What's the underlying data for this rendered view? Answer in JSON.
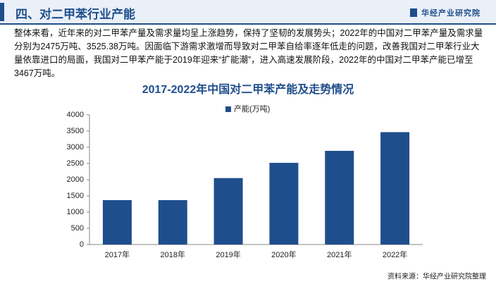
{
  "header": {
    "title": "四、对二甲苯行业产能",
    "logo": "华经产业研究院"
  },
  "paragraph": "整体来看，近年来的对二甲苯产量及需求量均呈上涨趋势，保持了坚韧的发展势头；2022年的中国对二甲苯产量及需求量分别为2475万吨、3525.38万吨。因面临下游需求激增而导致对二甲苯自给率逐年低走的问题，改善我国对二甲苯行业大量依靠进口的局面，我国对二甲苯产能于2019年迎来“扩能潮”，进入高速发展阶段，2022年的中国对二甲苯产能已增至3467万吨。",
  "chart_data": {
    "type": "bar",
    "title": "2017-2022年中国对二甲苯产能及走势情况",
    "categories": [
      "2017年",
      "2018年",
      "2019年",
      "2020年",
      "2021年",
      "2022年"
    ],
    "series": [
      {
        "name": "产能(万吨)",
        "color": "#1f4e8c",
        "values": [
          1370,
          1370,
          2050,
          2520,
          2890,
          3467
        ]
      }
    ],
    "ylim": [
      0,
      4000
    ],
    "yticks": [
      0,
      500,
      1000,
      1500,
      2000,
      2500,
      3000,
      3500,
      4000
    ],
    "grid": false,
    "legend": "top"
  },
  "source": "资料来源：华经产业研究院整理"
}
